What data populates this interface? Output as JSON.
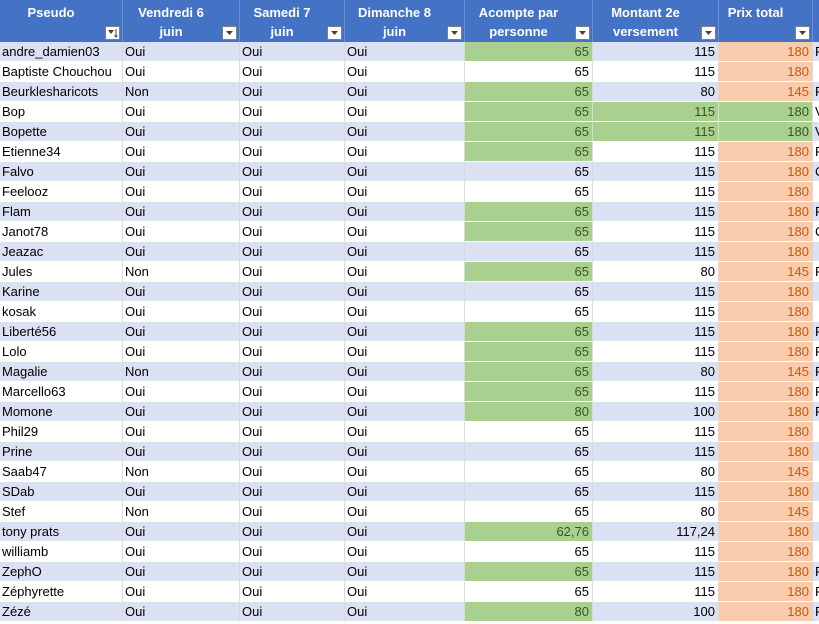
{
  "headers": [
    {
      "label": "Pseudo",
      "filter": "sort-filter-icon"
    },
    {
      "label": "Vendredi 6 juin",
      "filter": "dropdown-icon"
    },
    {
      "label": "Samedi 7 juin",
      "filter": "dropdown-icon"
    },
    {
      "label": "Dimanche 8 juin",
      "filter": "dropdown-icon"
    },
    {
      "label": "Acompte par personne",
      "filter": "dropdown-icon"
    },
    {
      "label": "Montant 2e versement",
      "filter": "dropdown-icon"
    },
    {
      "label": "Prix total",
      "filter": "dropdown-icon"
    }
  ],
  "colors": {
    "header": "#4472c4",
    "band": "#d9e1f2",
    "green_fill": "#a9d08e",
    "orange_fill": "#f8cbad",
    "orange_text": "#c65911"
  },
  "rows": [
    {
      "pseudo": "andre_damien03",
      "ven": "Oui",
      "sam": "Oui",
      "dim": "Oui",
      "acompte": "65",
      "acompte_hl": true,
      "montant": "115",
      "montant_hl": false,
      "prix": "180",
      "prix_hl": "orange",
      "extra": "P"
    },
    {
      "pseudo": "Baptiste Chouchou",
      "ven": "Oui",
      "sam": "Oui",
      "dim": "Oui",
      "acompte": "65",
      "acompte_hl": false,
      "montant": "115",
      "montant_hl": false,
      "prix": "180",
      "prix_hl": "orange",
      "extra": ""
    },
    {
      "pseudo": "Beurkleshar­icots",
      "ven": "Non",
      "sam": "Oui",
      "dim": "Oui",
      "acompte": "65",
      "acompte_hl": true,
      "montant": "80",
      "montant_hl": false,
      "prix": "145",
      "prix_hl": "orange",
      "extra": "P"
    },
    {
      "pseudo": "Bop",
      "ven": "Oui",
      "sam": "Oui",
      "dim": "Oui",
      "acompte": "65",
      "acompte_hl": true,
      "montant": "115",
      "montant_hl": true,
      "prix": "180",
      "prix_hl": "green",
      "extra": "V"
    },
    {
      "pseudo": "Bopette",
      "ven": "Oui",
      "sam": "Oui",
      "dim": "Oui",
      "acompte": "65",
      "acompte_hl": true,
      "montant": "115",
      "montant_hl": true,
      "prix": "180",
      "prix_hl": "green",
      "extra": "V"
    },
    {
      "pseudo": "Etienne34",
      "ven": "Oui",
      "sam": "Oui",
      "dim": "Oui",
      "acompte": "65",
      "acompte_hl": true,
      "montant": "115",
      "montant_hl": false,
      "prix": "180",
      "prix_hl": "orange",
      "extra": "P"
    },
    {
      "pseudo": "Falvo",
      "ven": "Oui",
      "sam": "Oui",
      "dim": "Oui",
      "acompte": "65",
      "acompte_hl": false,
      "montant": "115",
      "montant_hl": false,
      "prix": "180",
      "prix_hl": "orange",
      "extra": "C"
    },
    {
      "pseudo": "Feelooz",
      "ven": "Oui",
      "sam": "Oui",
      "dim": "Oui",
      "acompte": "65",
      "acompte_hl": false,
      "montant": "115",
      "montant_hl": false,
      "prix": "180",
      "prix_hl": "orange",
      "extra": ""
    },
    {
      "pseudo": "Flam",
      "ven": "Oui",
      "sam": "Oui",
      "dim": "Oui",
      "acompte": "65",
      "acompte_hl": true,
      "montant": "115",
      "montant_hl": false,
      "prix": "180",
      "prix_hl": "orange",
      "extra": "P"
    },
    {
      "pseudo": "Janot78",
      "ven": "Oui",
      "sam": "Oui",
      "dim": "Oui",
      "acompte": "65",
      "acompte_hl": true,
      "montant": "115",
      "montant_hl": false,
      "prix": "180",
      "prix_hl": "orange",
      "extra": "C"
    },
    {
      "pseudo": "Jeazac",
      "ven": "Oui",
      "sam": "Oui",
      "dim": "Oui",
      "acompte": "65",
      "acompte_hl": false,
      "montant": "115",
      "montant_hl": false,
      "prix": "180",
      "prix_hl": "orange",
      "extra": ""
    },
    {
      "pseudo": "Jules",
      "ven": "Non",
      "sam": "Oui",
      "dim": "Oui",
      "acompte": "65",
      "acompte_hl": true,
      "montant": "80",
      "montant_hl": false,
      "prix": "145",
      "prix_hl": "orange",
      "extra": "P"
    },
    {
      "pseudo": "Karine",
      "ven": "Oui",
      "sam": "Oui",
      "dim": "Oui",
      "acompte": "65",
      "acompte_hl": false,
      "montant": "115",
      "montant_hl": false,
      "prix": "180",
      "prix_hl": "orange",
      "extra": ""
    },
    {
      "pseudo": "kosak",
      "ven": "Oui",
      "sam": "Oui",
      "dim": "Oui",
      "acompte": "65",
      "acompte_hl": false,
      "montant": "115",
      "montant_hl": false,
      "prix": "180",
      "prix_hl": "orange",
      "extra": ""
    },
    {
      "pseudo": "Liberté56",
      "ven": "Oui",
      "sam": "Oui",
      "dim": "Oui",
      "acompte": "65",
      "acompte_hl": true,
      "montant": "115",
      "montant_hl": false,
      "prix": "180",
      "prix_hl": "orange",
      "extra": "P"
    },
    {
      "pseudo": "Lolo",
      "ven": "Oui",
      "sam": "Oui",
      "dim": "Oui",
      "acompte": "65",
      "acompte_hl": true,
      "montant": "115",
      "montant_hl": false,
      "prix": "180",
      "prix_hl": "orange",
      "extra": "P"
    },
    {
      "pseudo": "Magalie",
      "ven": "Non",
      "sam": "Oui",
      "dim": "Oui",
      "acompte": "65",
      "acompte_hl": true,
      "montant": "80",
      "montant_hl": false,
      "prix": "145",
      "prix_hl": "orange",
      "extra": "P"
    },
    {
      "pseudo": "Marcello63",
      "ven": "Oui",
      "sam": "Oui",
      "dim": "Oui",
      "acompte": "65",
      "acompte_hl": true,
      "montant": "115",
      "montant_hl": false,
      "prix": "180",
      "prix_hl": "orange",
      "extra": "P"
    },
    {
      "pseudo": "Momone",
      "ven": "Oui",
      "sam": "Oui",
      "dim": "Oui",
      "acompte": "80",
      "acompte_hl": true,
      "montant": "100",
      "montant_hl": false,
      "prix": "180",
      "prix_hl": "orange",
      "extra": "P"
    },
    {
      "pseudo": "Phil29",
      "ven": "Oui",
      "sam": "Oui",
      "dim": "Oui",
      "acompte": "65",
      "acompte_hl": false,
      "montant": "115",
      "montant_hl": false,
      "prix": "180",
      "prix_hl": "orange",
      "extra": ""
    },
    {
      "pseudo": "Prine",
      "ven": "Oui",
      "sam": "Oui",
      "dim": "Oui",
      "acompte": "65",
      "acompte_hl": false,
      "montant": "115",
      "montant_hl": false,
      "prix": "180",
      "prix_hl": "orange",
      "extra": ""
    },
    {
      "pseudo": "Saab47",
      "ven": "Non",
      "sam": "Oui",
      "dim": "Oui",
      "acompte": "65",
      "acompte_hl": false,
      "montant": "80",
      "montant_hl": false,
      "prix": "145",
      "prix_hl": "orange",
      "extra": ""
    },
    {
      "pseudo": "SDab",
      "ven": "Oui",
      "sam": "Oui",
      "dim": "Oui",
      "acompte": "65",
      "acompte_hl": false,
      "montant": "115",
      "montant_hl": false,
      "prix": "180",
      "prix_hl": "orange",
      "extra": ""
    },
    {
      "pseudo": "Stef",
      "ven": "Non",
      "sam": "Oui",
      "dim": "Oui",
      "acompte": "65",
      "acompte_hl": false,
      "montant": "80",
      "montant_hl": false,
      "prix": "145",
      "prix_hl": "orange",
      "extra": ""
    },
    {
      "pseudo": "tony prats",
      "ven": "Oui",
      "sam": "Oui",
      "dim": "Oui",
      "acompte": "62,76",
      "acompte_hl": true,
      "montant": "117,24",
      "montant_hl": false,
      "prix": "180",
      "prix_hl": "orange",
      "extra": ""
    },
    {
      "pseudo": "williamb",
      "ven": "Oui",
      "sam": "Oui",
      "dim": "Oui",
      "acompte": "65",
      "acompte_hl": false,
      "montant": "115",
      "montant_hl": false,
      "prix": "180",
      "prix_hl": "orange",
      "extra": ""
    },
    {
      "pseudo": "ZephO",
      "ven": "Oui",
      "sam": "Oui",
      "dim": "Oui",
      "acompte": "65",
      "acompte_hl": true,
      "montant": "115",
      "montant_hl": false,
      "prix": "180",
      "prix_hl": "orange",
      "extra": "P"
    },
    {
      "pseudo": "Zéphyrette",
      "ven": "Oui",
      "sam": "Oui",
      "dim": "Oui",
      "acompte": "65",
      "acompte_hl": false,
      "montant": "115",
      "montant_hl": false,
      "prix": "180",
      "prix_hl": "orange",
      "extra": "P"
    },
    {
      "pseudo": "Zézé",
      "ven": "Oui",
      "sam": "Oui",
      "dim": "Oui",
      "acompte": "80",
      "acompte_hl": true,
      "montant": "100",
      "montant_hl": false,
      "prix": "180",
      "prix_hl": "orange",
      "extra": "P"
    }
  ]
}
